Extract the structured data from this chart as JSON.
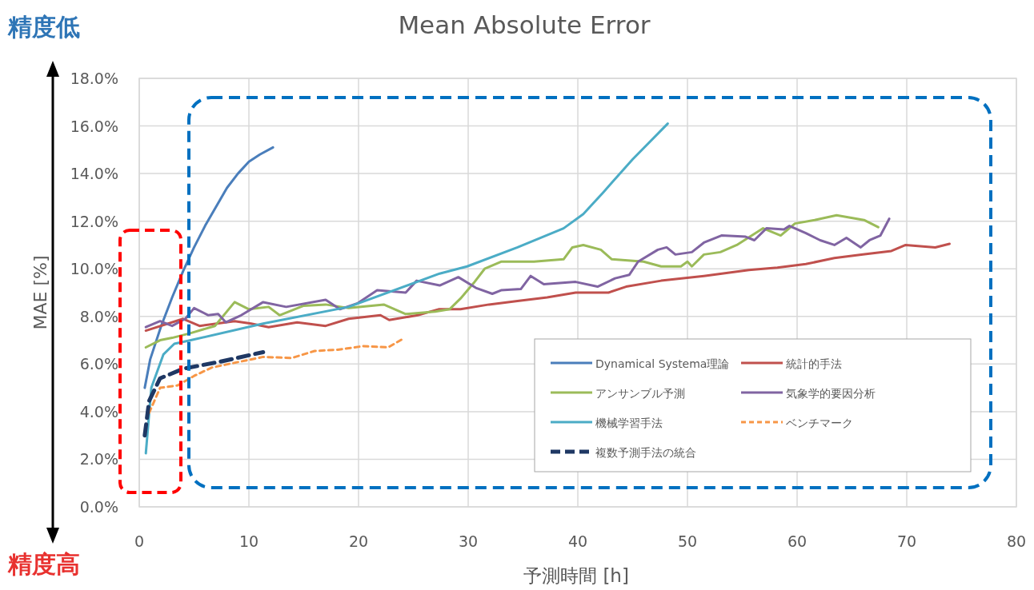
{
  "chart_data": {
    "type": "line",
    "title": "Mean Absolute Error",
    "xlabel": "予測時間 [h]",
    "ylabel": "MAE [%]",
    "annotations": [
      "精度低",
      "精度高"
    ],
    "xlim": [
      0,
      80
    ],
    "xticks": [
      0,
      10,
      20,
      30,
      40,
      50,
      60,
      70,
      80
    ],
    "ylim": [
      0,
      18
    ],
    "yticks": [
      {
        "value": 0,
        "label": "0.0%"
      },
      {
        "value": 2,
        "label": "2.0%"
      },
      {
        "value": 4,
        "label": "4.0%"
      },
      {
        "value": 6,
        "label": "6.0%"
      },
      {
        "value": 8,
        "label": "8.0%"
      },
      {
        "value": 10,
        "label": "10.0%"
      },
      {
        "value": 12,
        "label": "12.0%"
      },
      {
        "value": 14,
        "label": "14.0%"
      },
      {
        "value": 16,
        "label": "16.0%"
      },
      {
        "value": 18,
        "label": "18.0%"
      }
    ],
    "grid": true,
    "legend": "bottom right",
    "series": [
      {
        "name": "Dynamical Systema理論",
        "color": "#4a7ebb",
        "x": [
          0.5,
          1,
          2,
          3,
          4,
          5,
          6,
          7,
          8,
          9,
          10,
          11,
          12.2
        ],
        "values": [
          5.0,
          6.2,
          7.6,
          8.8,
          9.9,
          10.9,
          11.8,
          12.6,
          13.4,
          14.0,
          14.5,
          14.8,
          15.1
        ]
      },
      {
        "name": "統計的手法",
        "color": "#c0504d",
        "x": [
          0.6,
          4,
          5.5,
          8.7,
          10.2,
          11.8,
          14.4,
          17,
          19.1,
          22,
          22.8,
          25.4,
          27.3,
          29.3,
          31.9,
          34.5,
          37.2,
          39.8,
          42.8,
          44.4,
          47.6,
          51.5,
          55.6,
          58.2,
          60.8,
          63.4,
          66,
          68.6,
          69.9,
          72.6,
          73.9
        ],
        "values": [
          7.4,
          7.9,
          7.6,
          7.8,
          7.7,
          7.55,
          7.75,
          7.6,
          7.9,
          8.05,
          7.85,
          8.05,
          8.3,
          8.3,
          8.5,
          8.65,
          8.8,
          9.0,
          9.0,
          9.25,
          9.5,
          9.7,
          9.95,
          10.05,
          10.2,
          10.45,
          10.6,
          10.75,
          11.0,
          10.9,
          11.05
        ]
      },
      {
        "name": "アンサンブル予測",
        "color": "#9bbb59",
        "x": [
          0.6,
          1.9,
          3,
          4.7,
          6.9,
          8.7,
          10,
          11.8,
          12.8,
          15,
          17,
          19.1,
          22.3,
          24.3,
          27,
          28.3,
          29.3,
          30.5,
          31.5,
          33,
          36,
          38.7,
          39.5,
          40.5,
          42.1,
          43.1,
          46,
          47.6,
          49.4,
          50,
          50.4,
          51.5,
          53,
          54.5,
          56.9,
          58.5,
          59.8,
          61.6,
          63.6,
          66.1,
          67.4
        ],
        "values": [
          6.7,
          7.0,
          7.1,
          7.3,
          7.6,
          8.6,
          8.3,
          8.4,
          8.05,
          8.45,
          8.5,
          8.35,
          8.5,
          8.1,
          8.2,
          8.3,
          8.75,
          9.4,
          10.0,
          10.3,
          10.3,
          10.4,
          10.9,
          11.0,
          10.8,
          10.4,
          10.3,
          10.1,
          10.1,
          10.3,
          10.1,
          10.6,
          10.7,
          11.0,
          11.7,
          11.4,
          11.9,
          12.05,
          12.25,
          12.05,
          11.75
        ]
      },
      {
        "name": "気象学的要因分析",
        "color": "#8064a2",
        "x": [
          0.6,
          1.9,
          3,
          4.2,
          5.0,
          6.3,
          7.2,
          7.9,
          9.3,
          11.3,
          13.4,
          17,
          18.3,
          19.9,
          21.7,
          24.3,
          25.3,
          27.4,
          29.1,
          30.7,
          32.2,
          33,
          34.8,
          35.7,
          36.9,
          39.8,
          41.8,
          43.4,
          44.7,
          45.5,
          47.3,
          48.1,
          48.9,
          50.4,
          51.5,
          53.1,
          55.3,
          56.1,
          57.2,
          58.8,
          59.3,
          60.8,
          62.1,
          63.4,
          64.5,
          65.8,
          66.6,
          67.6,
          68.4
        ],
        "values": [
          7.55,
          7.8,
          7.6,
          7.9,
          8.35,
          8.05,
          8.1,
          7.75,
          8.05,
          8.6,
          8.4,
          8.7,
          8.3,
          8.55,
          9.1,
          9.0,
          9.5,
          9.3,
          9.65,
          9.2,
          8.95,
          9.1,
          9.15,
          9.7,
          9.35,
          9.45,
          9.25,
          9.6,
          9.75,
          10.3,
          10.8,
          10.9,
          10.6,
          10.7,
          11.1,
          11.4,
          11.35,
          11.2,
          11.7,
          11.65,
          11.8,
          11.5,
          11.2,
          11.0,
          11.3,
          10.9,
          11.2,
          11.4,
          12.1
        ]
      },
      {
        "name": "機械学習手法",
        "color": "#4bacc6",
        "x": [
          0.6,
          1.1,
          2.2,
          3.2,
          4.7,
          11.3,
          19.1,
          27.4,
          29.9,
          34.5,
          38.7,
          40.5,
          42.3,
          45,
          48.2
        ],
        "values": [
          2.25,
          5.0,
          6.4,
          6.85,
          7.0,
          7.7,
          8.4,
          9.8,
          10.1,
          10.9,
          11.7,
          12.3,
          13.2,
          14.6,
          16.1
        ]
      },
      {
        "name": "ベンチマーク",
        "color": "#f79646",
        "line_style": "dashed",
        "x": [
          0.9,
          1.9,
          3.5,
          5,
          6.6,
          9.2,
          11.3,
          13.9,
          16,
          18.1,
          20.4,
          22.7,
          24.2
        ],
        "values": [
          3.95,
          5.0,
          5.1,
          5.5,
          5.85,
          6.1,
          6.3,
          6.25,
          6.55,
          6.6,
          6.75,
          6.7,
          7.1
        ]
      },
      {
        "name": "複数予測手法の統合",
        "color": "#1f3864",
        "line_style": "dashed",
        "x": [
          0.5,
          0.9,
          1.9,
          4,
          7.4,
          11.3
        ],
        "values": [
          3.0,
          4.45,
          5.4,
          5.8,
          6.1,
          6.5
        ]
      }
    ]
  }
}
